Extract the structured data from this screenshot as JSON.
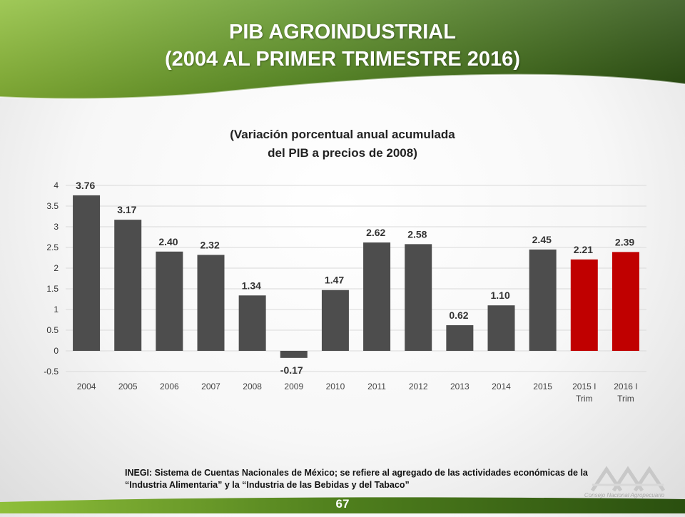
{
  "header": {
    "title_line1": "PIB AGROINDUSTRIAL",
    "title_line2": "(2004 AL PRIMER TRIMESTRE 2016)"
  },
  "chart_data": {
    "type": "bar",
    "subtitle_line1": "(Variación porcentual anual acumulada",
    "subtitle_line2": "del PIB a precios de 2008)",
    "categories": [
      [
        "2004"
      ],
      [
        "2005"
      ],
      [
        "2006"
      ],
      [
        "2007"
      ],
      [
        "2008"
      ],
      [
        "2009"
      ],
      [
        "2010"
      ],
      [
        "2011"
      ],
      [
        "2012"
      ],
      [
        "2013"
      ],
      [
        "2014"
      ],
      [
        "2015"
      ],
      [
        "2015 I",
        "Trim"
      ],
      [
        "2016 I",
        "Trim"
      ]
    ],
    "values": [
      3.76,
      3.17,
      2.4,
      2.32,
      1.34,
      -0.17,
      1.47,
      2.62,
      2.58,
      0.62,
      1.1,
      2.45,
      2.21,
      2.39
    ],
    "value_labels": [
      "3.76",
      "3.17",
      "2.40",
      "2.32",
      "1.34",
      "-0.17",
      "1.47",
      "2.62",
      "2.58",
      "0.62",
      "1.10",
      "2.45",
      "2.21",
      "2.39"
    ],
    "bar_colors": [
      "#4d4d4d",
      "#4d4d4d",
      "#4d4d4d",
      "#4d4d4d",
      "#4d4d4d",
      "#4d4d4d",
      "#4d4d4d",
      "#4d4d4d",
      "#4d4d4d",
      "#4d4d4d",
      "#4d4d4d",
      "#4d4d4d",
      "#c00000",
      "#c00000"
    ],
    "yticks": [
      -0.5,
      0,
      0.5,
      1,
      1.5,
      2,
      2.5,
      3,
      3.5,
      4
    ],
    "ytick_labels": [
      "-0.5",
      "0",
      "0.5",
      "1",
      "1.5",
      "2",
      "2.5",
      "3",
      "3.5",
      "4"
    ],
    "ylim": [
      -0.5,
      4
    ],
    "grid": true,
    "legend": "none"
  },
  "footer": {
    "source_line1": "INEGI: Sistema de Cuentas Nacionales de México; se refiere al agregado de las actividades económicas de la",
    "source_line2": "“Industria Alimentaria” y la “Industria de las Bebidas y del Tabaco”",
    "page_number": "67",
    "logo_caption": "Consejo Nacional Agropecuario"
  },
  "colors": {
    "banner_dark": "#2f5a12",
    "banner_light": "#8fbf3a",
    "bar_gray": "#4d4d4d",
    "bar_red": "#c00000"
  }
}
